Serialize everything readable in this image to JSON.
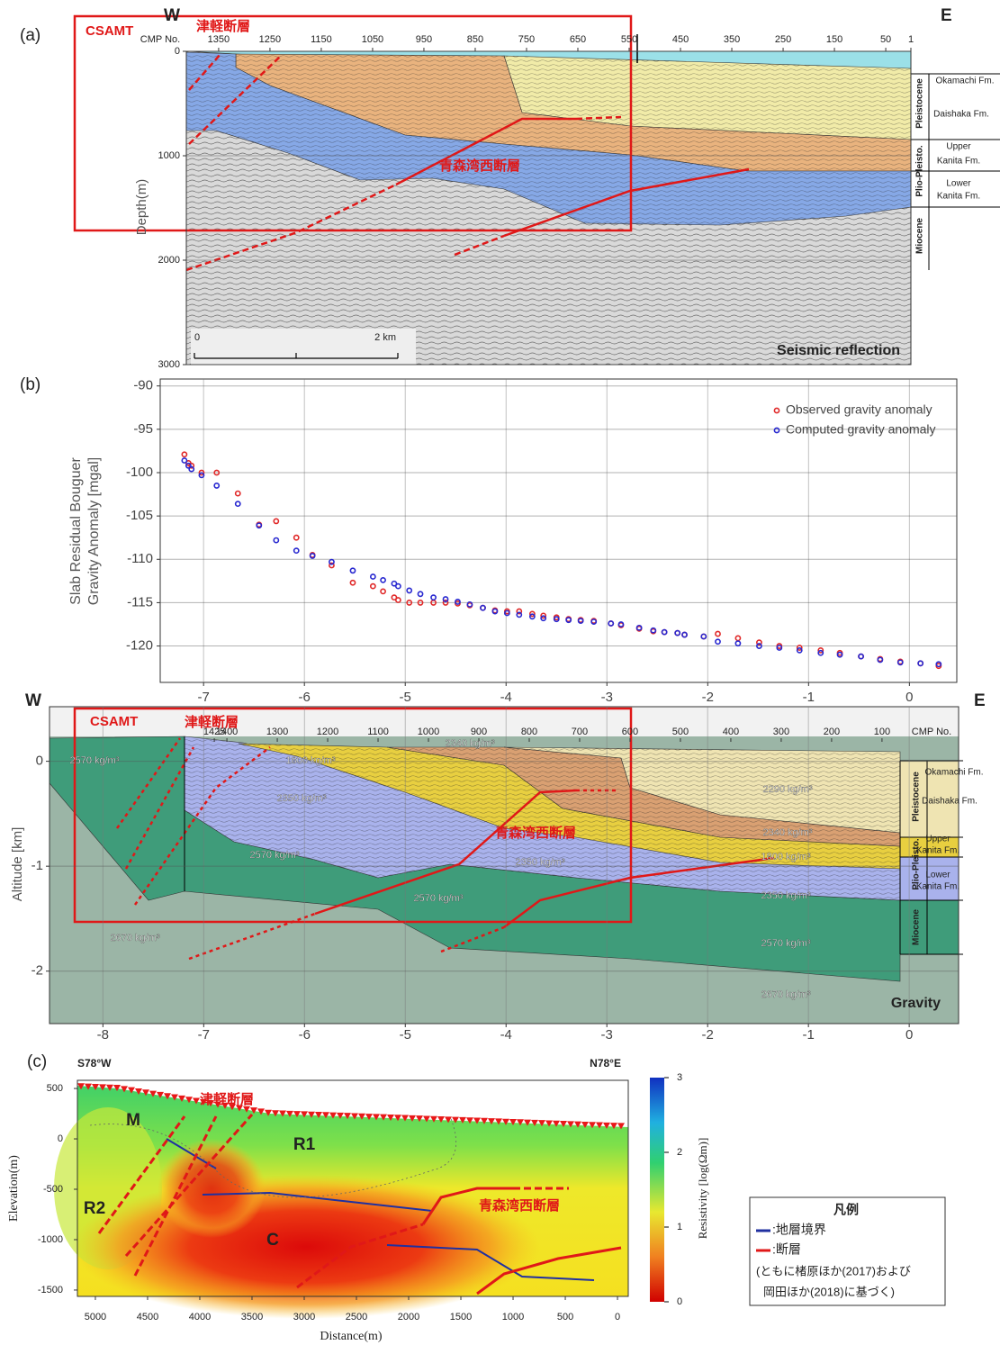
{
  "chart_data": [
    {
      "type": "section",
      "panel_label": "(a)",
      "left_label": "W",
      "right_label": "E",
      "xlabel": "CMP No.",
      "ylabel": "Depth(m)",
      "xlim": [
        1413,
        1
      ],
      "xticks": [
        1350,
        1250,
        1150,
        1050,
        950,
        850,
        750,
        650,
        550,
        450,
        350,
        250,
        150,
        50,
        1
      ],
      "ylim": [
        3000,
        0
      ],
      "yticks": [
        0,
        1000,
        2000,
        3000
      ],
      "grid": "y",
      "annotations": [
        "CSAMT",
        "津軽断層",
        "青森湾西断層",
        "Seismic reflection"
      ],
      "scale_labels": [
        "0",
        "2 km"
      ],
      "formations": [
        [
          "Okamachi Fm."
        ],
        [
          "Daishaka Fm."
        ],
        [
          "Upper",
          "Kanita Fm."
        ],
        [
          "Lower",
          "Kanita Fm."
        ]
      ],
      "periods": [
        "Pleistocene",
        "Plio-Pleisto.",
        "Miocene"
      ]
    },
    {
      "type": "scatter",
      "panel_label": "(b)",
      "ylabel": [
        "Slab Residual Bouguer",
        "Gravity Anomaly [mgal]"
      ],
      "xlim": [
        -7.43,
        0.47
      ],
      "xticks": [
        -7,
        -6,
        -5,
        -4,
        -3,
        -2,
        -1,
        0
      ],
      "ylim": [
        -124.2,
        -89.2
      ],
      "yticks": [
        -90,
        -95,
        -100,
        -105,
        -110,
        -115,
        -120
      ],
      "grid": true,
      "legend": "upper right",
      "x": [
        -7.19,
        -7.15,
        -7.12,
        -7.02,
        -6.87,
        -6.66,
        -6.45,
        -6.28,
        -6.08,
        -5.92,
        -5.73,
        -5.52,
        -5.32,
        -5.22,
        -5.11,
        -5.07,
        -4.96,
        -4.85,
        -4.72,
        -4.6,
        -4.48,
        -4.36,
        -4.23,
        -4.11,
        -3.99,
        -3.87,
        -3.74,
        -3.63,
        -3.5,
        -3.38,
        -3.26,
        -3.13,
        -2.96,
        -2.86,
        -2.68,
        -2.54,
        -2.43,
        -2.3,
        -2.23,
        -2.04,
        -1.9,
        -1.7,
        -1.49,
        -1.29,
        -1.09,
        -0.88,
        -0.69,
        -0.48,
        -0.29,
        -0.09,
        0.11,
        0.29
      ],
      "series": [
        {
          "name": "Observed gravity anomaly",
          "color": "#e02828",
          "values": [
            -97.9,
            -98.9,
            -99.2,
            -100.0,
            -100.0,
            -102.4,
            -106.0,
            -105.6,
            -107.5,
            -109.5,
            -110.7,
            -112.7,
            -113.1,
            -113.7,
            -114.4,
            -114.7,
            -115.0,
            -115.0,
            -115.0,
            -115.0,
            -115.1,
            -115.3,
            -115.6,
            -115.9,
            -116.0,
            -116.0,
            -116.3,
            -116.5,
            -116.7,
            -116.9,
            -117.0,
            -117.1,
            -117.4,
            -117.6,
            -118.0,
            -118.3,
            -118.4,
            -118.5,
            -118.7,
            -118.9,
            -118.6,
            -119.1,
            -119.6,
            -120.0,
            -120.2,
            -120.5,
            -120.8,
            -121.2,
            -121.5,
            -121.8,
            -122.0,
            -122.3
          ]
        },
        {
          "name": "Computed gravity anomaly",
          "color": "#2828d0",
          "values": [
            -98.6,
            -99.2,
            -99.6,
            -100.3,
            -101.5,
            -103.6,
            -106.1,
            -107.8,
            -109.0,
            -109.6,
            -110.3,
            -111.3,
            -112.0,
            -112.4,
            -112.8,
            -113.1,
            -113.6,
            -114.0,
            -114.4,
            -114.6,
            -114.9,
            -115.2,
            -115.6,
            -116.0,
            -116.2,
            -116.4,
            -116.6,
            -116.8,
            -116.9,
            -117.0,
            -117.1,
            -117.2,
            -117.4,
            -117.5,
            -117.9,
            -118.2,
            -118.4,
            -118.5,
            -118.7,
            -118.9,
            -119.5,
            -119.7,
            -120.0,
            -120.2,
            -120.5,
            -120.8,
            -121.0,
            -121.2,
            -121.6,
            -121.9,
            -122.0,
            -122.1
          ]
        }
      ]
    },
    {
      "type": "section",
      "left_label": "W",
      "right_label": "E",
      "ylabel": "Altitude [km]",
      "xlim": [
        -8.53,
        0.49
      ],
      "xticks": [
        -8,
        -7,
        -6,
        -5,
        -4,
        -3,
        -2,
        -1,
        0
      ],
      "ylim": [
        -2.5,
        0.52
      ],
      "yticks": [
        0,
        -1,
        -2
      ],
      "grid": true,
      "x2label": "CMP No.",
      "x2lim": [
        1752,
        -52
      ],
      "x2ticks": [
        1425,
        1400,
        1300,
        1200,
        1100,
        1000,
        900,
        800,
        700,
        600,
        500,
        400,
        300,
        200,
        100
      ],
      "annotations": [
        "CSAMT",
        "津軽断層",
        "青森湾西断層",
        "Gravity"
      ],
      "densities": [
        "2570 kg/m³",
        "1800 kg/m³",
        "2340 kg/m³",
        "2350 kg/m³",
        "2290 kg/m³",
        "2570 kg/m³",
        "2340 kg/m³",
        "1800 kg/m³",
        "2350 kg/m³",
        "2570 kg/m³",
        "2350 kg/m³",
        "2670 kg/m³",
        "2570 kg/m³",
        "2670 kg/m³"
      ],
      "formations": [
        [
          "Okamachi Fm."
        ],
        [
          "Daishaka Fm."
        ],
        [
          "Upper",
          "Kanita Fm."
        ],
        [
          "Lower",
          "Kanita Fm."
        ]
      ],
      "periods": [
        "Pleistocene",
        "Plio-Pleisto.",
        "Miocene"
      ]
    },
    {
      "type": "section",
      "panel_label": "(c)",
      "left_label": "S78°W",
      "right_label": "N78°E",
      "xlabel": "Distance(m)",
      "ylabel": "Elevation(m)",
      "xlim": [
        5172,
        -103
      ],
      "xticks": [
        5000,
        4500,
        4000,
        3500,
        3000,
        2500,
        2000,
        1500,
        1000,
        500,
        0
      ],
      "ylim": [
        -1563,
        581
      ],
      "yticks": [
        500,
        0,
        -500,
        -1000,
        -1500
      ],
      "annotations": [
        "M",
        "R1",
        "R2",
        "C",
        "津軽断層",
        "青森湾西断層"
      ],
      "colorbar_label": "Resistivity [log(Ωm)]",
      "clim": [
        0,
        3
      ],
      "cticks": [
        0,
        1,
        2,
        3
      ],
      "legend_box": {
        "title": "凡例",
        "items": [
          ":地層境界",
          ":断層"
        ],
        "note": [
          "(ともに楮原ほか(2017)および",
          "岡田ほか(2018)に基づく)"
        ]
      }
    }
  ]
}
